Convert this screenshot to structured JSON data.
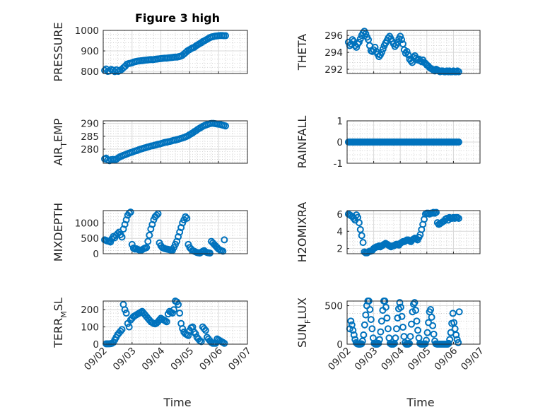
{
  "figure": {
    "title": "Figure 3 high",
    "x_axis_label": "Time",
    "x_tick_labels": [
      "09/02",
      "09/03",
      "09/04",
      "09/05",
      "09/06",
      "09/07"
    ],
    "marker_color": "#0072BD",
    "grid": "minor dotted"
  },
  "chart_data": [
    {
      "type": "scatter",
      "ylabel": "PRESSURE",
      "xlim": [
        0,
        5
      ],
      "ylim": [
        790,
        1000
      ],
      "yticks": [
        800,
        900,
        1000
      ],
      "yticklabels": [
        "800",
        "900",
        "1000"
      ],
      "x": [
        0.05,
        0.1,
        0.16,
        0.22,
        0.28,
        0.34,
        0.4,
        0.46,
        0.52,
        0.58,
        0.64,
        0.7,
        0.76,
        0.82,
        0.88,
        0.94,
        1.0,
        1.06,
        1.12,
        1.18,
        1.24,
        1.3,
        1.36,
        1.42,
        1.48,
        1.54,
        1.6,
        1.66,
        1.72,
        1.78,
        1.84,
        1.9,
        1.96,
        2.02,
        2.08,
        2.14,
        2.2,
        2.26,
        2.32,
        2.38,
        2.44,
        2.5,
        2.56,
        2.62,
        2.68,
        2.74,
        2.8,
        2.86,
        2.92,
        2.98,
        3.04,
        3.1,
        3.16,
        3.22,
        3.28,
        3.34,
        3.4,
        3.46,
        3.52,
        3.58,
        3.64,
        3.7,
        3.76,
        3.82,
        3.88,
        3.94,
        4.0,
        4.06,
        4.12,
        4.18,
        4.24
      ],
      "y": [
        805,
        812,
        800,
        802,
        810,
        806,
        799,
        808,
        800,
        805,
        810,
        818,
        825,
        835,
        838,
        840,
        842,
        846,
        848,
        850,
        851,
        852,
        853,
        854,
        855,
        856,
        857,
        858,
        857,
        859,
        860,
        861,
        862,
        863,
        864,
        865,
        865,
        866,
        867,
        868,
        869,
        870,
        870,
        872,
        874,
        878,
        885,
        892,
        900,
        905,
        910,
        915,
        918,
        925,
        930,
        935,
        940,
        946,
        950,
        955,
        960,
        965,
        968,
        970,
        972,
        973,
        974,
        975,
        975,
        974,
        974
      ]
    },
    {
      "type": "scatter",
      "ylabel": "THETA",
      "xlim": [
        0,
        5
      ],
      "ylim": [
        291.5,
        296.6
      ],
      "yticks": [
        292,
        294,
        296
      ],
      "yticklabels": [
        "292",
        "294",
        "296"
      ],
      "x": [
        0.05,
        0.1,
        0.15,
        0.2,
        0.25,
        0.3,
        0.35,
        0.4,
        0.45,
        0.5,
        0.55,
        0.6,
        0.65,
        0.7,
        0.75,
        0.8,
        0.85,
        0.9,
        0.95,
        1.0,
        1.05,
        1.1,
        1.15,
        1.2,
        1.25,
        1.3,
        1.35,
        1.4,
        1.45,
        1.5,
        1.55,
        1.6,
        1.65,
        1.7,
        1.75,
        1.8,
        1.85,
        1.9,
        1.95,
        2.0,
        2.05,
        2.1,
        2.15,
        2.2,
        2.25,
        2.3,
        2.35,
        2.4,
        2.45,
        2.5,
        2.55,
        2.6,
        2.65,
        2.7,
        2.75,
        2.8,
        2.85,
        2.9,
        2.95,
        3.0,
        3.05,
        3.1,
        3.15,
        3.2,
        3.25,
        3.3,
        3.35,
        3.4,
        3.45,
        3.5,
        3.55,
        3.6,
        3.65,
        3.7,
        3.75,
        3.8,
        3.85,
        3.9,
        3.95,
        4.0,
        4.05,
        4.1,
        4.15,
        4.2
      ],
      "y": [
        295.2,
        294.8,
        295.0,
        295.5,
        295.3,
        294.8,
        294.6,
        295.0,
        295.2,
        295.6,
        296.0,
        296.3,
        296.5,
        296.2,
        295.8,
        295.5,
        294.8,
        294.2,
        294.1,
        294.3,
        294.6,
        294.1,
        293.8,
        293.5,
        293.7,
        294.0,
        294.4,
        294.8,
        295.1,
        295.4,
        295.7,
        295.9,
        295.6,
        295.3,
        295.0,
        294.7,
        294.9,
        295.2,
        295.6,
        295.9,
        295.5,
        295.0,
        294.3,
        293.9,
        294.1,
        293.7,
        293.2,
        293.0,
        292.8,
        293.4,
        293.6,
        293.3,
        293.1,
        293.2,
        293.0,
        292.9,
        293.1,
        292.8,
        292.7,
        292.5,
        292.4,
        292.2,
        292.1,
        292.0,
        291.9,
        291.8,
        292.0,
        291.9,
        291.8,
        291.7,
        291.8,
        291.8,
        291.7,
        291.7,
        291.8,
        291.7,
        291.8,
        291.7,
        291.7,
        291.8,
        291.7,
        291.7,
        291.8,
        291.7
      ]
    },
    {
      "type": "scatter",
      "ylabel": "AIR",
      "ylabel_subscript": "T",
      "ylabel_suffix": "EMP",
      "xlim": [
        0,
        5
      ],
      "ylim": [
        274.5,
        291
      ],
      "yticks": [
        280,
        285,
        290
      ],
      "yticklabels": [
        "280",
        "285",
        "290"
      ],
      "x": [
        0.05,
        0.1,
        0.16,
        0.22,
        0.28,
        0.34,
        0.4,
        0.46,
        0.52,
        0.58,
        0.64,
        0.7,
        0.76,
        0.82,
        0.88,
        0.94,
        1.0,
        1.06,
        1.12,
        1.18,
        1.24,
        1.3,
        1.36,
        1.42,
        1.48,
        1.54,
        1.6,
        1.66,
        1.72,
        1.78,
        1.84,
        1.9,
        1.96,
        2.02,
        2.08,
        2.14,
        2.2,
        2.26,
        2.32,
        2.38,
        2.44,
        2.5,
        2.56,
        2.62,
        2.68,
        2.74,
        2.8,
        2.86,
        2.92,
        2.98,
        3.04,
        3.1,
        3.16,
        3.22,
        3.28,
        3.34,
        3.4,
        3.46,
        3.52,
        3.58,
        3.64,
        3.7,
        3.76,
        3.82,
        3.88,
        3.94,
        4.0,
        4.06,
        4.12,
        4.18,
        4.24
      ],
      "y": [
        276.2,
        276.5,
        275.8,
        275.5,
        275.9,
        276.0,
        275.7,
        276.1,
        276.6,
        277.0,
        277.3,
        277.6,
        277.8,
        278.1,
        278.4,
        278.6,
        278.8,
        279.1,
        279.3,
        279.5,
        279.8,
        280.0,
        280.2,
        280.4,
        280.6,
        280.8,
        281.0,
        281.2,
        281.3,
        281.5,
        281.7,
        281.9,
        282.0,
        282.2,
        282.4,
        282.6,
        282.7,
        282.9,
        283.0,
        283.2,
        283.4,
        283.5,
        283.7,
        283.9,
        284.1,
        284.3,
        284.5,
        284.8,
        285.1,
        285.5,
        285.9,
        286.3,
        286.8,
        287.2,
        287.7,
        288.1,
        288.5,
        288.9,
        289.2,
        289.5,
        289.7,
        289.9,
        290.0,
        290.0,
        289.9,
        289.8,
        289.7,
        289.6,
        289.4,
        289.2,
        289.0
      ]
    },
    {
      "type": "scatter",
      "ylabel": "RAINFALL",
      "xlim": [
        0,
        5
      ],
      "ylim": [
        -1,
        1
      ],
      "yticks": [
        -1,
        0,
        1
      ],
      "yticklabels": [
        "-1",
        "0",
        "1"
      ],
      "x_start": 0.05,
      "x_step": 0.05,
      "count": 84,
      "constant_y": 0
    },
    {
      "type": "scatter",
      "ylabel": "MIXDEPTH",
      "xlim": [
        0,
        5
      ],
      "ylim": [
        0,
        1400
      ],
      "yticks": [
        0,
        500,
        1000
      ],
      "yticklabels": [
        "0",
        "500",
        "1000"
      ],
      "x": [
        0.05,
        0.1,
        0.15,
        0.2,
        0.25,
        0.3,
        0.35,
        0.4,
        0.45,
        0.5,
        0.55,
        0.6,
        0.65,
        0.7,
        0.75,
        0.8,
        0.85,
        0.9,
        0.95,
        1.0,
        1.05,
        1.1,
        1.15,
        1.2,
        1.25,
        1.3,
        1.35,
        1.4,
        1.45,
        1.5,
        1.55,
        1.6,
        1.65,
        1.7,
        1.75,
        1.8,
        1.85,
        1.9,
        1.95,
        2.0,
        2.05,
        2.1,
        2.15,
        2.2,
        2.25,
        2.3,
        2.35,
        2.4,
        2.45,
        2.5,
        2.55,
        2.6,
        2.65,
        2.7,
        2.75,
        2.8,
        2.85,
        2.9,
        2.95,
        3.0,
        3.05,
        3.1,
        3.15,
        3.2,
        3.25,
        3.3,
        3.35,
        3.4,
        3.45,
        3.5,
        3.55,
        3.6,
        3.65,
        3.7,
        3.75,
        3.8,
        3.85,
        3.9,
        3.95,
        4.0,
        4.05,
        4.1,
        4.15,
        4.2
      ],
      "y": [
        450,
        430,
        410,
        400,
        380,
        480,
        560,
        520,
        600,
        650,
        700,
        620,
        540,
        800,
        950,
        1100,
        1250,
        1320,
        1350,
        300,
        180,
        150,
        160,
        140,
        120,
        100,
        130,
        160,
        180,
        200,
        400,
        600,
        800,
        950,
        1100,
        1200,
        1250,
        1300,
        350,
        260,
        200,
        180,
        160,
        150,
        140,
        130,
        120,
        110,
        200,
        300,
        400,
        550,
        700,
        850,
        1000,
        1100,
        1200,
        1150,
        300,
        200,
        150,
        100,
        80,
        60,
        40,
        30,
        20,
        50,
        80,
        100,
        60,
        40,
        30,
        20,
        400,
        350,
        300,
        250,
        200,
        150,
        120,
        100,
        80,
        450
      ]
    },
    {
      "type": "scatter",
      "ylabel": "H2OMIXRA",
      "xlim": [
        0,
        5
      ],
      "ylim": [
        1.4,
        6.4
      ],
      "yticks": [
        2,
        4,
        6
      ],
      "yticklabels": [
        "2",
        "4",
        "6"
      ],
      "x": [
        0.05,
        0.1,
        0.15,
        0.2,
        0.25,
        0.3,
        0.35,
        0.4,
        0.45,
        0.5,
        0.55,
        0.6,
        0.65,
        0.7,
        0.75,
        0.8,
        0.85,
        0.9,
        0.95,
        1.0,
        1.05,
        1.1,
        1.15,
        1.2,
        1.25,
        1.3,
        1.35,
        1.4,
        1.45,
        1.5,
        1.55,
        1.6,
        1.65,
        1.7,
        1.75,
        1.8,
        1.85,
        1.9,
        1.95,
        2.0,
        2.05,
        2.1,
        2.15,
        2.2,
        2.25,
        2.3,
        2.35,
        2.4,
        2.45,
        2.5,
        2.55,
        2.6,
        2.65,
        2.7,
        2.75,
        2.8,
        2.85,
        2.9,
        2.95,
        3.0,
        3.05,
        3.1,
        3.15,
        3.2,
        3.25,
        3.3,
        3.35,
        3.4,
        3.45,
        3.5,
        3.55,
        3.6,
        3.65,
        3.7,
        3.75,
        3.8,
        3.85,
        3.9,
        3.95,
        4.0,
        4.05,
        4.1,
        4.15,
        4.2
      ],
      "y": [
        6.0,
        5.9,
        5.8,
        5.7,
        5.5,
        5.3,
        5.9,
        5.6,
        5.0,
        4.2,
        3.5,
        2.7,
        1.6,
        1.5,
        1.5,
        1.6,
        1.7,
        1.7,
        1.8,
        2.0,
        2.1,
        2.2,
        2.2,
        2.3,
        2.2,
        2.3,
        2.4,
        2.5,
        2.6,
        2.5,
        2.4,
        2.3,
        2.2,
        2.3,
        2.3,
        2.4,
        2.5,
        2.5,
        2.4,
        2.6,
        2.7,
        2.8,
        2.8,
        2.9,
        3.0,
        3.0,
        2.9,
        2.8,
        3.0,
        3.1,
        3.2,
        3.1,
        3.0,
        3.3,
        3.6,
        4.2,
        4.8,
        5.4,
        6.0,
        6.1,
        6.1,
        6.0,
        6.1,
        6.1,
        6.2,
        6.1,
        6.2,
        5.0,
        4.8,
        4.9,
        5.0,
        5.1,
        5.2,
        5.4,
        5.5,
        5.3,
        5.6,
        5.5,
        5.5,
        5.6,
        5.5,
        5.6,
        5.6,
        5.5
      ]
    },
    {
      "type": "scatter",
      "ylabel": "TERR",
      "ylabel_subscript": "M",
      "ylabel_suffix": "SL",
      "xlim": [
        0,
        5
      ],
      "ylim": [
        0,
        250
      ],
      "yticks": [
        0,
        100,
        200
      ],
      "yticklabels": [
        "0",
        "100",
        "200"
      ],
      "x": [
        0.1,
        0.15,
        0.2,
        0.25,
        0.3,
        0.35,
        0.4,
        0.45,
        0.5,
        0.55,
        0.6,
        0.65,
        0.7,
        0.75,
        0.8,
        0.85,
        0.9,
        0.95,
        1.0,
        1.05,
        1.1,
        1.15,
        1.2,
        1.25,
        1.3,
        1.35,
        1.4,
        1.45,
        1.5,
        1.55,
        1.6,
        1.65,
        1.7,
        1.75,
        1.8,
        1.85,
        1.9,
        1.95,
        2.0,
        2.05,
        2.1,
        2.15,
        2.2,
        2.25,
        2.3,
        2.35,
        2.4,
        2.45,
        2.5,
        2.55,
        2.6,
        2.65,
        2.7,
        2.75,
        2.8,
        2.85,
        2.9,
        2.95,
        3.0,
        3.05,
        3.1,
        3.15,
        3.2,
        3.25,
        3.3,
        3.35,
        3.4,
        3.45,
        3.5,
        3.55,
        3.6,
        3.65,
        3.7,
        3.75,
        3.8,
        3.85,
        3.9,
        3.95,
        4.0,
        4.05,
        4.1,
        4.15,
        4.2
      ],
      "y": [
        2,
        2,
        2,
        3,
        5,
        10,
        25,
        40,
        55,
        65,
        75,
        85,
        230,
        200,
        180,
        120,
        100,
        140,
        150,
        160,
        165,
        170,
        175,
        180,
        185,
        190,
        180,
        170,
        160,
        150,
        140,
        130,
        125,
        120,
        118,
        122,
        130,
        140,
        150,
        145,
        140,
        135,
        130,
        175,
        190,
        185,
        180,
        200,
        250,
        245,
        230,
        180,
        120,
        90,
        70,
        60,
        55,
        50,
        80,
        95,
        100,
        70,
        60,
        40,
        30,
        20,
        15,
        100,
        90,
        80,
        40,
        30,
        20,
        10,
        5,
        5,
        5,
        30,
        25,
        20,
        15,
        10,
        5
      ]
    },
    {
      "type": "scatter",
      "ylabel": "SUN",
      "ylabel_subscript": "F",
      "ylabel_suffix": "LUX",
      "xlim": [
        0,
        5
      ],
      "ylim": [
        0,
        560
      ],
      "yticks": [
        0,
        500
      ],
      "yticklabels": [
        "0",
        "500"
      ],
      "x": [
        0.1,
        0.14,
        0.18,
        0.22,
        0.26,
        0.3,
        0.34,
        0.38,
        0.42,
        0.46,
        0.5,
        0.54,
        0.58,
        0.62,
        0.66,
        0.7,
        0.74,
        0.78,
        0.82,
        0.86,
        0.9,
        0.94,
        0.98,
        1.02,
        1.06,
        1.1,
        1.14,
        1.18,
        1.22,
        1.26,
        1.3,
        1.34,
        1.38,
        1.42,
        1.46,
        1.5,
        1.54,
        1.58,
        1.62,
        1.66,
        1.7,
        1.74,
        1.78,
        1.82,
        1.86,
        1.9,
        1.94,
        1.98,
        2.02,
        2.06,
        2.1,
        2.14,
        2.18,
        2.22,
        2.26,
        2.3,
        2.34,
        2.38,
        2.42,
        2.46,
        2.5,
        2.54,
        2.58,
        2.62,
        2.66,
        2.7,
        2.74,
        2.78,
        2.82,
        2.86,
        2.9,
        2.94,
        2.98,
        3.02,
        3.06,
        3.1,
        3.14,
        3.18,
        3.22,
        3.26,
        3.3,
        3.34,
        3.38,
        3.42,
        3.46,
        3.5,
        3.54,
        3.58,
        3.62,
        3.66,
        3.7,
        3.74,
        3.78,
        3.82,
        3.86,
        3.9,
        3.94,
        3.98,
        4.02,
        4.06,
        4.1,
        4.14,
        4.18,
        4.22
      ],
      "y": [
        200,
        300,
        250,
        180,
        120,
        60,
        20,
        5,
        0,
        0,
        0,
        5,
        40,
        120,
        250,
        380,
        500,
        560,
        560,
        450,
        320,
        200,
        80,
        10,
        0,
        0,
        0,
        10,
        60,
        160,
        300,
        440,
        560,
        560,
        480,
        340,
        200,
        80,
        10,
        0,
        0,
        0,
        10,
        80,
        200,
        340,
        460,
        540,
        480,
        360,
        220,
        100,
        20,
        0,
        0,
        0,
        10,
        100,
        260,
        420,
        520,
        540,
        440,
        300,
        180,
        80,
        10,
        0,
        0,
        0,
        0,
        5,
        50,
        150,
        280,
        420,
        450,
        350,
        240,
        130,
        40,
        5,
        0,
        0,
        0,
        0,
        0,
        0,
        0,
        0,
        0,
        0,
        0,
        10,
        60,
        150,
        270,
        400,
        280,
        200,
        120,
        60,
        20,
        420
      ]
    }
  ]
}
